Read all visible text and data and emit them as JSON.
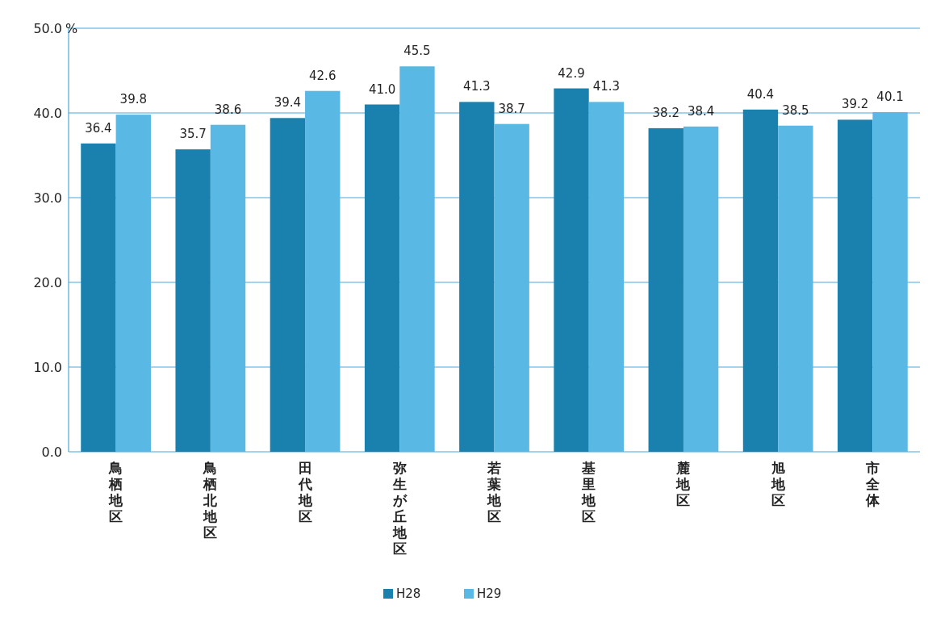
{
  "chart_data": {
    "type": "bar",
    "categories": [
      "鳥栖地区",
      "鳥栖北地区",
      "田代地区",
      "弥生が丘地区",
      "若葉地区",
      "基里地区",
      "麓地区",
      "旭地区",
      "市全体"
    ],
    "ylabel": "%",
    "series": [
      {
        "name": "H28",
        "color": "#1a80ad",
        "values": [
          36.4,
          35.7,
          39.4,
          41.0,
          41.3,
          42.9,
          38.2,
          40.4,
          39.2
        ],
        "value_labels": [
          "36.4",
          "35.7",
          "39.4",
          "41.0",
          "41.3",
          "42.9",
          "38.2",
          "40.4",
          "39.2"
        ]
      },
      {
        "name": "H29",
        "color": "#5ab8e4",
        "values": [
          39.8,
          38.6,
          42.6,
          45.5,
          38.7,
          41.3,
          38.4,
          38.5,
          40.1
        ],
        "value_labels": [
          "39.8",
          "38.6",
          "42.6",
          "45.5",
          "38.7",
          "41.3",
          "38.4",
          "38.5",
          "40.1"
        ]
      }
    ],
    "ylim": [
      0,
      50
    ],
    "yticks": [
      {
        "value": 0,
        "label": "0.0"
      },
      {
        "value": 10,
        "label": "10.0"
      },
      {
        "value": 20,
        "label": "20.0"
      },
      {
        "value": 30,
        "label": "30.0"
      },
      {
        "value": 40,
        "label": "40.0"
      },
      {
        "value": 50,
        "label": "50.0"
      }
    ],
    "grid": "y",
    "legend": "bottom"
  }
}
